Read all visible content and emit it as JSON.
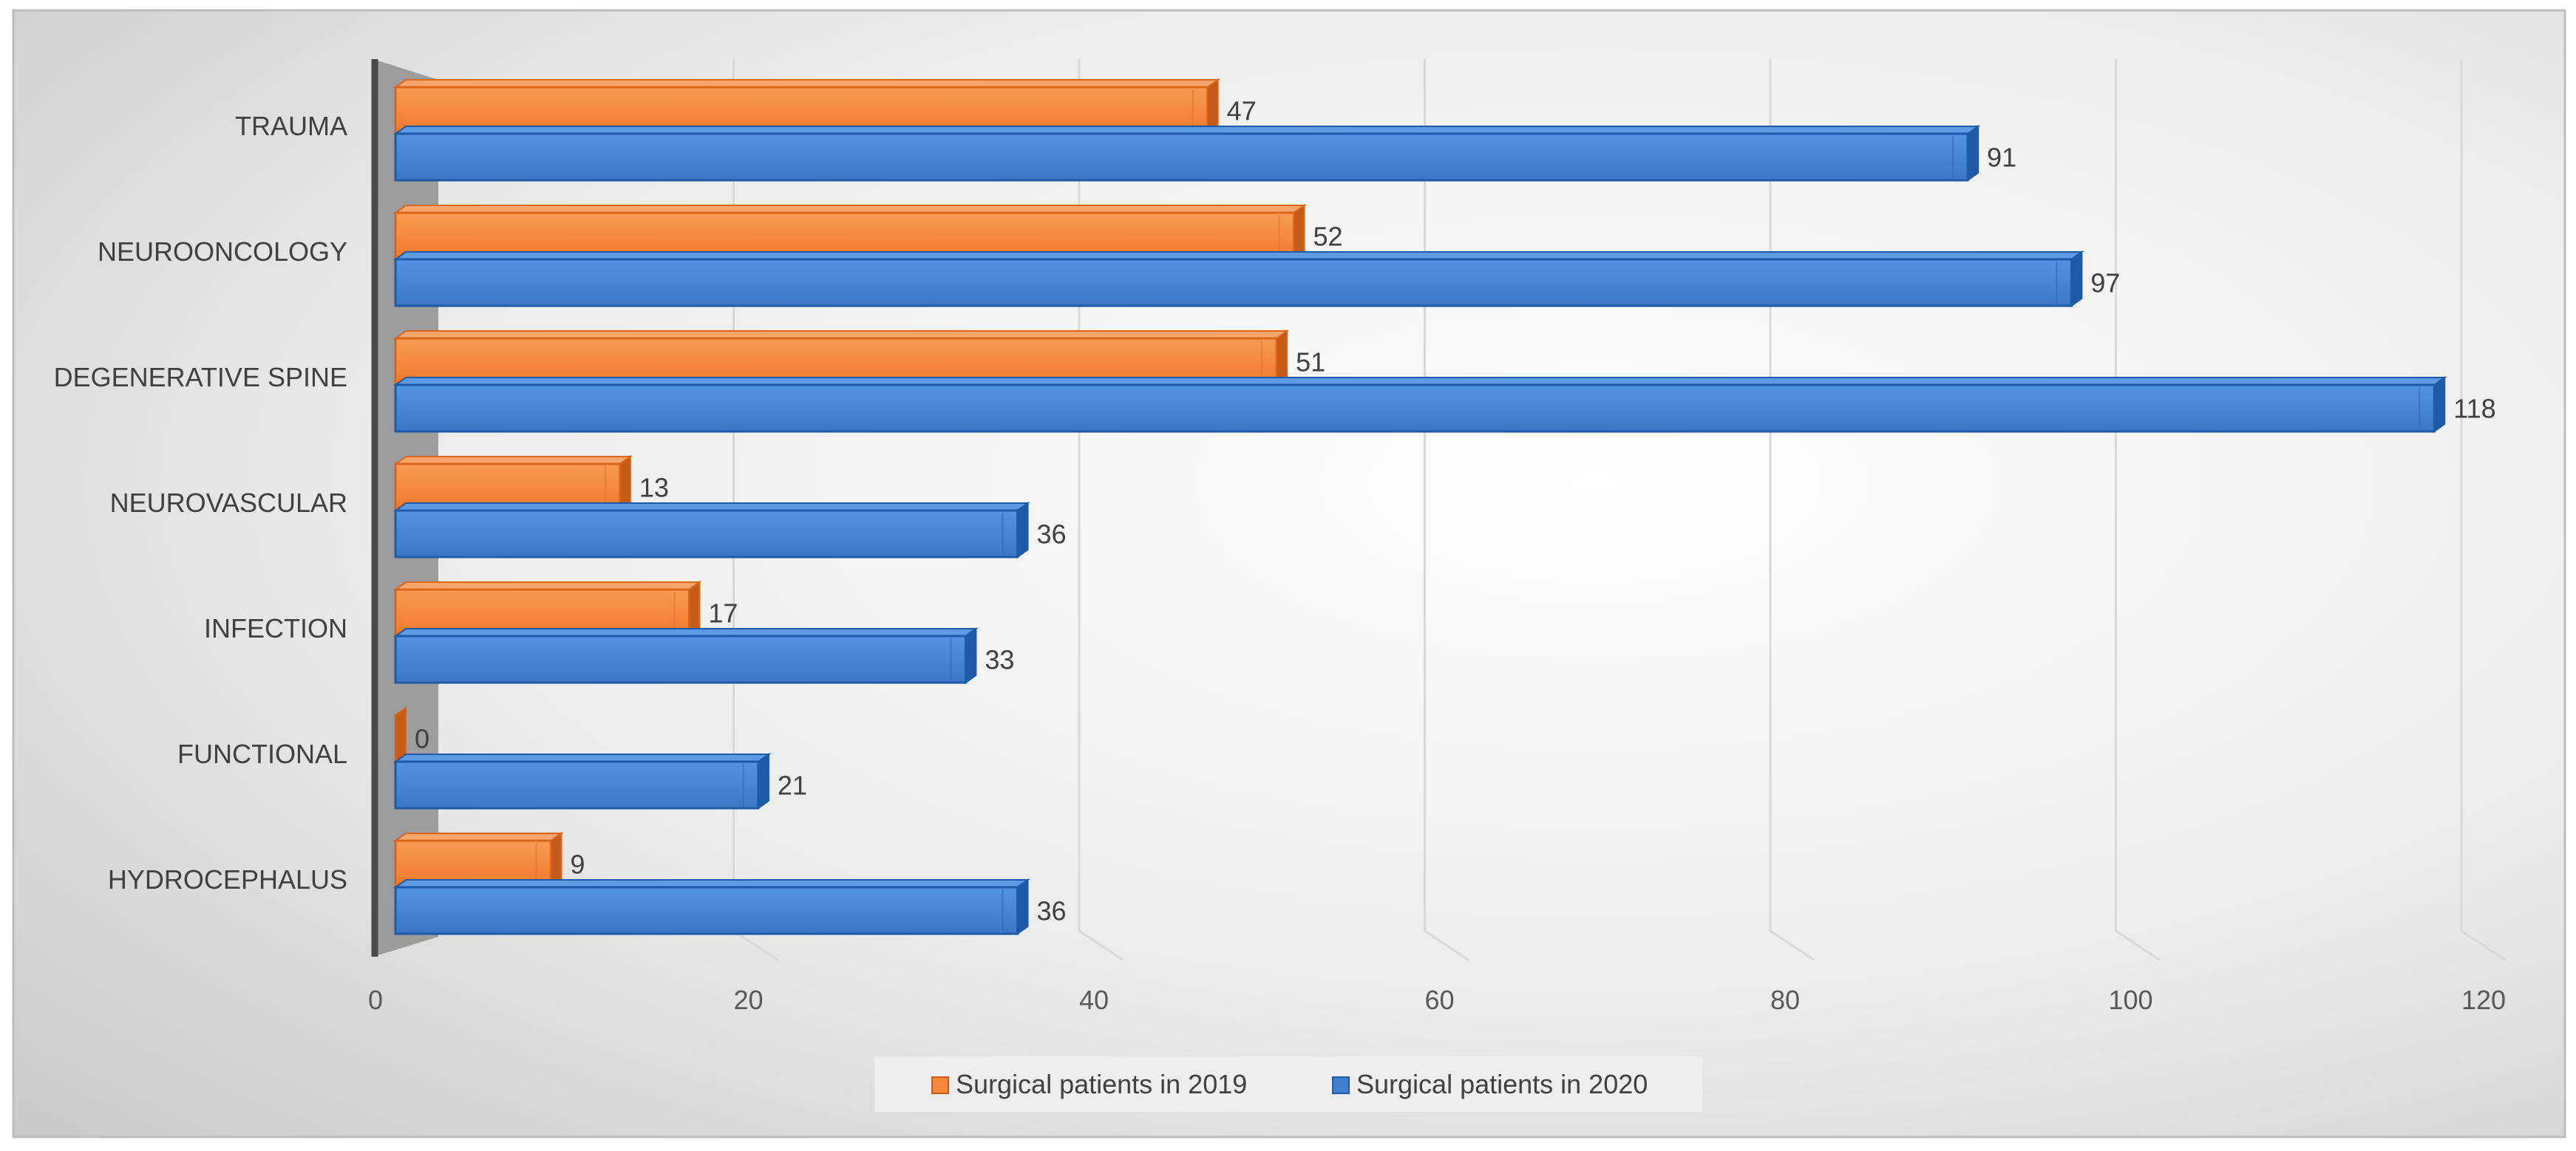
{
  "chart_data": {
    "type": "bar",
    "orientation": "horizontal",
    "style": "3d-clustered",
    "categories": [
      "TRAUMA",
      "NEUROONCOLOGY",
      "DEGENERATIVE SPINE",
      "NEUROVASCULAR",
      "INFECTION",
      "FUNCTIONAL",
      "HYDROCEPHALUS"
    ],
    "series": [
      {
        "name": "Surgical patients in 2019",
        "values": [
          47,
          52,
          51,
          13,
          17,
          0,
          9
        ],
        "color": "#f5883c"
      },
      {
        "name": "Surgical patients in 2020",
        "values": [
          91,
          97,
          118,
          36,
          33,
          21,
          36
        ],
        "color": "#3f80d0"
      }
    ],
    "xlim": [
      0,
      120
    ],
    "xticks": [
      0,
      20,
      40,
      60,
      80,
      100,
      120
    ],
    "grid": true,
    "legend_position": "bottom",
    "title": "",
    "xlabel": "",
    "ylabel": ""
  }
}
